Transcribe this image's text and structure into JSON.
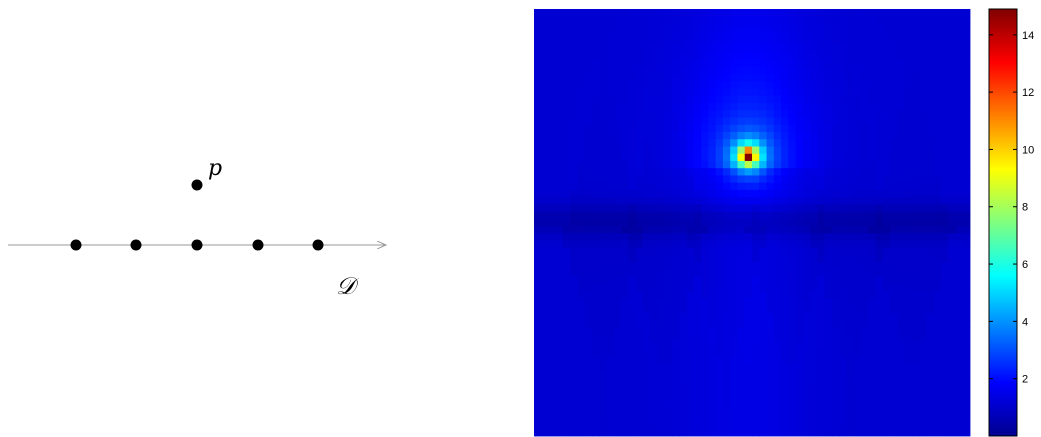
{
  "diagram": {
    "line_label": "𝒟",
    "point_label": "p",
    "line_points": [
      1,
      2,
      3,
      4,
      5
    ]
  },
  "chart_data": {
    "type": "heatmap",
    "title": "",
    "xlabel": "",
    "ylabel": "",
    "colormap": "jet",
    "colorbar": {
      "min": 0,
      "max": 14.9,
      "ticks": [
        2,
        4,
        6,
        8,
        10,
        12,
        14
      ]
    },
    "peak_value": 14.9,
    "background_value": 1.2,
    "axes_visible": false
  }
}
